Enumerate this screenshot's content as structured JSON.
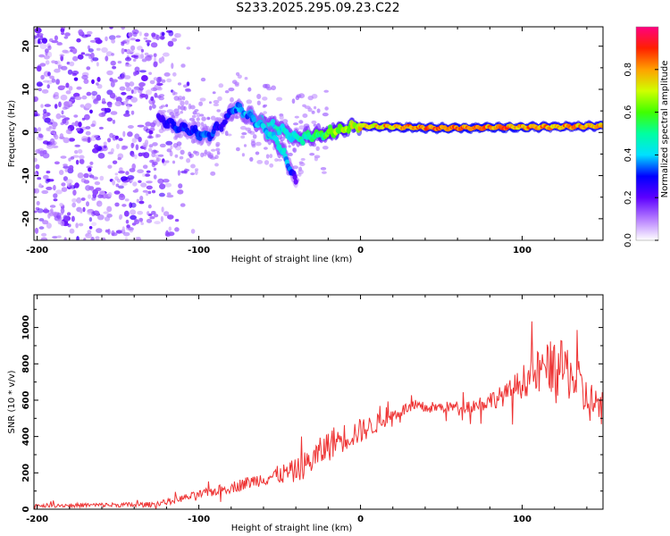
{
  "title": "S233.2025.295.09.23.C22",
  "chart_data": [
    {
      "type": "heatmap",
      "id": "spectrogram",
      "xlabel": "Height of straight line (km)",
      "ylabel": "Frequency (Hz)",
      "xlim": [
        -202,
        150
      ],
      "ylim": [
        -25,
        24.5
      ],
      "xticks": [
        -200,
        -100,
        0,
        100
      ],
      "yticks": [
        -20,
        -10,
        0,
        10,
        20
      ],
      "colorbar": {
        "label": "Normalized spectral amplitude",
        "range": [
          0,
          1
        ],
        "ticks": [
          "0.0",
          "0.2",
          "0.4",
          "0.6",
          "0.8"
        ],
        "tick_values": [
          0,
          0.2,
          0.4,
          0.6,
          0.8
        ]
      },
      "ridge": {
        "x": [
          -125,
          -115,
          -105,
          -95,
          -85,
          -78,
          -70,
          -60,
          -50,
          -42,
          -36,
          -32,
          -25,
          -15,
          0,
          20,
          50,
          90,
          120,
          150
        ],
        "freq": [
          3,
          1.5,
          0.5,
          -1,
          2,
          6,
          4,
          2,
          1,
          -1,
          -1.5,
          -1,
          -0.5,
          0.5,
          1.5,
          1.3,
          1.0,
          1.2,
          1.3,
          1.5
        ],
        "amplitude": [
          0.25,
          0.3,
          0.3,
          0.35,
          0.25,
          0.35,
          0.4,
          0.45,
          0.45,
          0.45,
          0.5,
          0.5,
          0.55,
          0.65,
          0.75,
          0.8,
          0.85,
          0.85,
          0.8,
          0.8
        ]
      },
      "branch": {
        "x": [
          -70,
          -60,
          -52,
          -46,
          -42,
          -40
        ],
        "freq": [
          4,
          1,
          -2,
          -6,
          -9,
          -12
        ],
        "amplitude": [
          0.35,
          0.4,
          0.45,
          0.4,
          0.3,
          0.2
        ]
      },
      "noise_region": {
        "x_range": [
          -202,
          -115
        ],
        "freq_range": [
          -25,
          24.5
        ],
        "amplitude_range": [
          0.05,
          0.15
        ]
      }
    },
    {
      "type": "line",
      "id": "snr",
      "xlabel": "Height of straight line (km)",
      "ylabel": "SNR (10 * v/v)",
      "xlim": [
        -202,
        150
      ],
      "ylim": [
        0,
        1180
      ],
      "xticks": [
        -200,
        -100,
        0,
        100
      ],
      "yticks": [
        0,
        200,
        400,
        600,
        800,
        1000
      ],
      "color": "#ee3333",
      "trend": {
        "x": [
          -202,
          -130,
          -120,
          -100,
          -80,
          -60,
          -40,
          -30,
          -20,
          -15,
          0,
          10,
          20,
          30,
          50,
          70,
          80,
          90,
          100,
          110,
          120,
          130,
          140,
          150
        ],
        "y": [
          20,
          25,
          40,
          80,
          120,
          170,
          210,
          270,
          350,
          380,
          430,
          470,
          520,
          560,
          560,
          570,
          600,
          630,
          700,
          760,
          800,
          750,
          600,
          560
        ]
      },
      "noise_amplitude": {
        "x": [
          -202,
          -120,
          -60,
          -30,
          -20,
          0,
          20,
          60,
          90,
          110,
          130,
          150
        ],
        "y": [
          10,
          15,
          40,
          80,
          90,
          70,
          35,
          30,
          60,
          120,
          160,
          90
        ]
      }
    }
  ]
}
